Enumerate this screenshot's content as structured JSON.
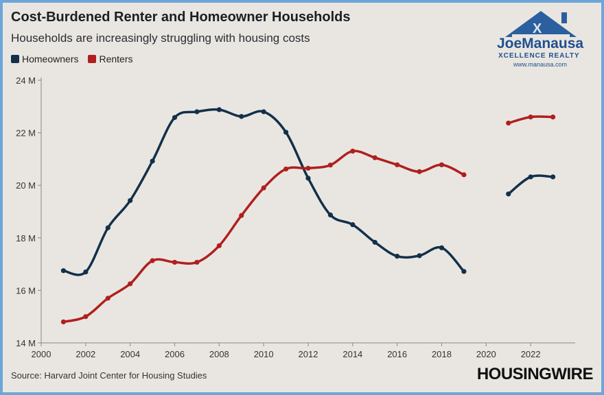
{
  "title": "Cost-Burdened Renter and Homeowner Households",
  "subtitle": "Households are increasingly struggling with housing costs",
  "source": "Source: Harvard Joint Center for Housing Studies",
  "brand": "HOUSINGWIRE",
  "logo": {
    "name": "JoeManausa",
    "sub": "XCELLENCE REALTY",
    "url": "www.manausa.com"
  },
  "colors": {
    "homeowners": "#13304a",
    "renters": "#b01f1f",
    "background": "#e9e6e1",
    "frame": "#6fa6d8"
  },
  "chart_data": {
    "type": "line",
    "title": "Cost-Burdened Renter and Homeowner Households",
    "subtitle": "Households are increasingly struggling with housing costs",
    "xlabel": "",
    "ylabel": "",
    "xlim": [
      2000,
      2024
    ],
    "ylim": [
      14,
      24
    ],
    "x_ticks": [
      "2000",
      "2002",
      "2004",
      "2006",
      "2008",
      "2010",
      "2012",
      "2014",
      "2016",
      "2018",
      "2020",
      "2022"
    ],
    "y_ticks": [
      "14 M",
      "16 M",
      "18 M",
      "20 M",
      "22 M",
      "24 M"
    ],
    "legend_position": "top-left",
    "grid": false,
    "series": [
      {
        "name": "Homeowners",
        "color": "#13304a",
        "segments": [
          [
            [
              2001,
              16.75
            ],
            [
              2002,
              16.7
            ],
            [
              2003,
              18.38
            ],
            [
              2004,
              19.42
            ],
            [
              2005,
              20.92
            ],
            [
              2006,
              22.58
            ],
            [
              2007,
              22.8
            ],
            [
              2008,
              22.88
            ],
            [
              2009,
              22.62
            ],
            [
              2010,
              22.8
            ],
            [
              2011,
              22.02
            ],
            [
              2012,
              20.27
            ],
            [
              2013,
              18.87
            ],
            [
              2014,
              18.5
            ],
            [
              2015,
              17.83
            ],
            [
              2016,
              17.3
            ],
            [
              2017,
              17.32
            ],
            [
              2018,
              17.62
            ],
            [
              2019,
              16.72
            ]
          ],
          [
            [
              2021,
              19.67
            ],
            [
              2022,
              20.32
            ],
            [
              2023,
              20.32
            ]
          ]
        ]
      },
      {
        "name": "Renters",
        "color": "#b01f1f",
        "segments": [
          [
            [
              2001,
              14.8
            ],
            [
              2002,
              15.0
            ],
            [
              2003,
              15.7
            ],
            [
              2004,
              16.25
            ],
            [
              2005,
              17.13
            ],
            [
              2006,
              17.07
            ],
            [
              2007,
              17.07
            ],
            [
              2008,
              17.7
            ],
            [
              2009,
              18.85
            ],
            [
              2010,
              19.9
            ],
            [
              2011,
              20.62
            ],
            [
              2012,
              20.65
            ],
            [
              2013,
              20.77
            ],
            [
              2014,
              21.3
            ],
            [
              2015,
              21.05
            ],
            [
              2016,
              20.78
            ],
            [
              2017,
              20.52
            ],
            [
              2018,
              20.78
            ],
            [
              2019,
              20.4
            ]
          ],
          [
            [
              2021,
              22.37
            ],
            [
              2022,
              22.6
            ],
            [
              2023,
              22.6
            ]
          ]
        ]
      }
    ]
  }
}
